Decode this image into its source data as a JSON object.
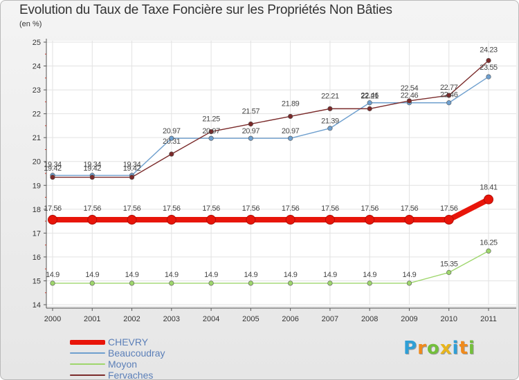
{
  "title": "Evolution du Taux de Taxe Foncière sur les Propriétés Non Bâties",
  "unit_label": "(en %)",
  "brand": {
    "letters": [
      "P",
      "r",
      "o",
      "x",
      "i",
      "t",
      "i"
    ],
    "colors": [
      "#2f9fd6",
      "#f08a1c",
      "#73bf3b",
      "#e8b51c",
      "#2f9fd6",
      "#f08a1c",
      "#73bf3b"
    ]
  },
  "chart_data": {
    "type": "line",
    "title": "Evolution du Taux de Taxe Foncière sur les Propriétés Non Bâties",
    "ylabel": "(en %)",
    "xlabel": "",
    "x": [
      "2000",
      "2001",
      "2002",
      "2003",
      "2004",
      "2005",
      "2006",
      "2007",
      "2008",
      "2009",
      "2010",
      "2011"
    ],
    "ylim": [
      14,
      25
    ],
    "yticks": [
      14,
      15,
      16,
      17,
      18,
      19,
      20,
      21,
      22,
      23,
      24,
      25
    ],
    "grid": true,
    "legend_position": "bottom-left",
    "series": [
      {
        "name": "CHEVRY",
        "color": "#e8150a",
        "emphasis": true,
        "values": [
          17.56,
          17.56,
          17.56,
          17.56,
          17.56,
          17.56,
          17.56,
          17.56,
          17.56,
          17.56,
          17.56,
          18.41
        ],
        "labels": [
          "17.56",
          "17.56",
          "17.56",
          "17.56",
          "17.56",
          "17.56",
          "17.56",
          "17.56",
          "17.56",
          "17.56",
          "17.56",
          "18.41"
        ]
      },
      {
        "name": "Beaucoudray",
        "color": "#6e9fce",
        "values": [
          19.42,
          19.42,
          19.42,
          20.97,
          20.97,
          20.97,
          20.97,
          21.39,
          22.46,
          22.46,
          22.46,
          23.55
        ],
        "labels": [
          "19.42",
          "19.42",
          "19.42",
          "20.97",
          "20.97",
          "20.97",
          "20.97",
          "21.39",
          "22.46",
          "22.46",
          "22.46",
          "23.55"
        ]
      },
      {
        "name": "Moyon",
        "color": "#9ed66c",
        "values": [
          14.9,
          14.9,
          14.9,
          14.9,
          14.9,
          14.9,
          14.9,
          14.9,
          14.9,
          14.9,
          15.35,
          16.25
        ],
        "labels": [
          "14.9",
          "14.9",
          "14.9",
          "14.9",
          "14.9",
          "14.9",
          "14.9",
          "14.9",
          "14.9",
          "14.9",
          "15.35",
          "16.25"
        ]
      },
      {
        "name": "Fervaches",
        "color": "#7a2a2a",
        "values": [
          19.34,
          19.34,
          19.34,
          20.31,
          21.25,
          21.57,
          21.89,
          22.21,
          22.21,
          22.54,
          22.77,
          24.23
        ],
        "labels": [
          "19.34",
          "19.34",
          "19.34",
          "20.31",
          "21.25",
          "21.57",
          "21.89",
          "22.21",
          "22.21",
          "22.54",
          "22.77",
          "24.23"
        ]
      }
    ]
  }
}
